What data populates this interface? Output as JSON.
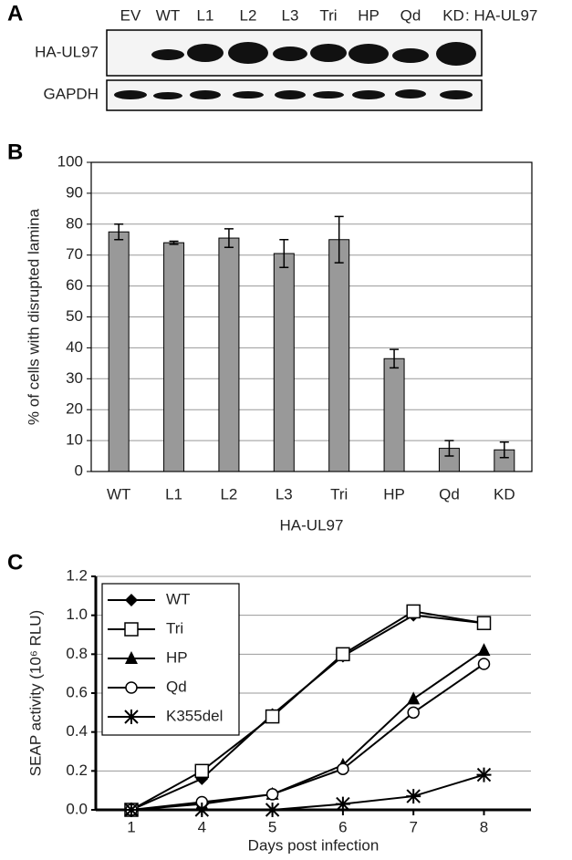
{
  "panel_labels": [
    "A",
    "B",
    "C"
  ],
  "blot": {
    "lanes": [
      "EV",
      "WT",
      "L1",
      "L2",
      "L3",
      "Tri",
      "HP",
      "Qd",
      "KD"
    ],
    "suffix": ": HA-UL97",
    "rows": [
      "HA-UL97",
      "GAPDH"
    ]
  },
  "chart_data": [
    {
      "type": "bar",
      "xlabel": "HA-UL97",
      "ylabel": "% of cells with disrupted lamina",
      "categories": [
        "WT",
        "L1",
        "L2",
        "L3",
        "Tri",
        "HP",
        "Qd",
        "KD"
      ],
      "values": [
        77.5,
        74,
        75.5,
        70.5,
        75,
        36.5,
        7.5,
        7
      ],
      "errors": [
        2.5,
        0.5,
        3,
        4.5,
        7.5,
        3,
        2.5,
        2.5
      ],
      "color": "#999999",
      "ylim": [
        0,
        100
      ],
      "yticks": [
        0,
        10,
        20,
        30,
        40,
        50,
        60,
        70,
        80,
        90,
        100
      ],
      "grid": true
    },
    {
      "type": "line",
      "xlabel": "Days post infection",
      "ylabel": "SEAP activity (10⁶ RLU)",
      "categories": [
        "1",
        "4",
        "5",
        "6",
        "7",
        "8"
      ],
      "ylim": [
        0,
        1.2
      ],
      "yticks": [
        {
          "value": 0,
          "label": "0.0"
        },
        0.2,
        0.4,
        0.6,
        0.8,
        {
          "value": 1,
          "label": "1.0"
        },
        1.2
      ],
      "grid": true,
      "legend": "upper left",
      "series": [
        {
          "name": "WT",
          "color": "#000000",
          "marker": "diamond",
          "values": [
            0,
            0.16,
            0.49,
            0.79,
            1.0,
            0.96
          ]
        },
        {
          "name": "Tri",
          "color": "#000000",
          "marker": "square-open",
          "values": [
            0,
            0.2,
            0.48,
            0.8,
            1.02,
            0.96
          ]
        },
        {
          "name": "HP",
          "color": "#000000",
          "marker": "triangle",
          "values": [
            0,
            0.03,
            0.08,
            0.23,
            0.57,
            0.82
          ]
        },
        {
          "name": "Qd",
          "color": "#000000",
          "marker": "circle-open",
          "values": [
            0,
            0.04,
            0.08,
            0.21,
            0.5,
            0.75
          ]
        },
        {
          "name": "K355del",
          "color": "#000000",
          "marker": "star",
          "values": [
            0,
            0,
            0,
            0.03,
            0.07,
            0.18
          ]
        }
      ]
    }
  ]
}
